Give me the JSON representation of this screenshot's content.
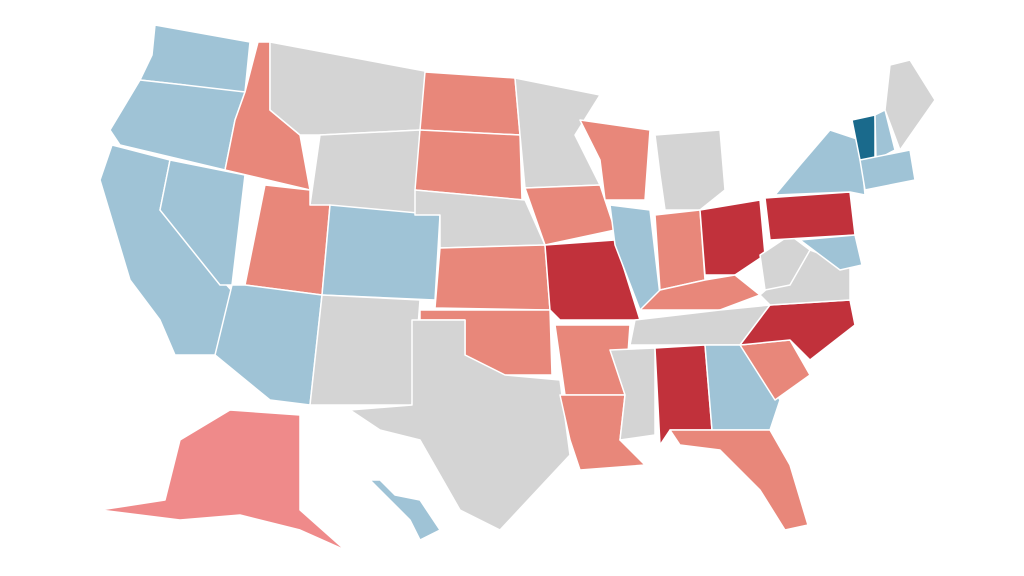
{
  "map": {
    "regions": [
      {
        "color": "#9fc3d6"
      },
      {
        "color": "#9fc3d6"
      },
      {
        "color": "#9fc3d6"
      },
      {
        "color": "#9fc3d6"
      },
      {
        "color": "#e8877a"
      },
      {
        "color": "#d4d4d4"
      },
      {
        "color": "#d4d4d4"
      },
      {
        "color": "#e8877a"
      },
      {
        "color": "#9fc3d6"
      },
      {
        "color": "#9fc3d6"
      },
      {
        "color": "#d4d4d4"
      },
      {
        "color": "#e8877a"
      },
      {
        "color": "#e8877a"
      },
      {
        "color": "#d4d4d4"
      },
      {
        "color": "#e8877a"
      },
      {
        "color": "#e8877a"
      },
      {
        "color": "#d4d4d4"
      },
      {
        "color": "#d4d4d4"
      },
      {
        "color": "#e8877a"
      },
      {
        "color": "#c1313b"
      },
      {
        "color": "#e8877a"
      },
      {
        "color": "#e8877a"
      },
      {
        "color": "#e8877a"
      },
      {
        "color": "#9fc3d6"
      },
      {
        "color": "#d4d4d4"
      },
      {
        "color": "#e8877a"
      },
      {
        "color": "#c1313b"
      },
      {
        "color": "#e8877a"
      },
      {
        "color": "#d4d4d4"
      },
      {
        "color": "#d4d4d4"
      },
      {
        "color": "#c1313b"
      },
      {
        "color": "#9fc3d6"
      },
      {
        "color": "#e8877a"
      },
      {
        "color": "#e8877a"
      },
      {
        "color": "#c1313b"
      },
      {
        "color": "#d4d4d4"
      },
      {
        "color": "#d4d4d4"
      },
      {
        "color": "#c1313b"
      },
      {
        "color": "#9fc3d6"
      },
      {
        "color": "#9fc3d6"
      },
      {
        "color": "#1a6a8c"
      },
      {
        "color": "#9fc3d6"
      },
      {
        "color": "#d4d4d4"
      },
      {
        "color": "#9fc3d6"
      },
      {
        "color": "#ef8a8a"
      },
      {
        "color": "#9fc3d6"
      }
    ]
  }
}
